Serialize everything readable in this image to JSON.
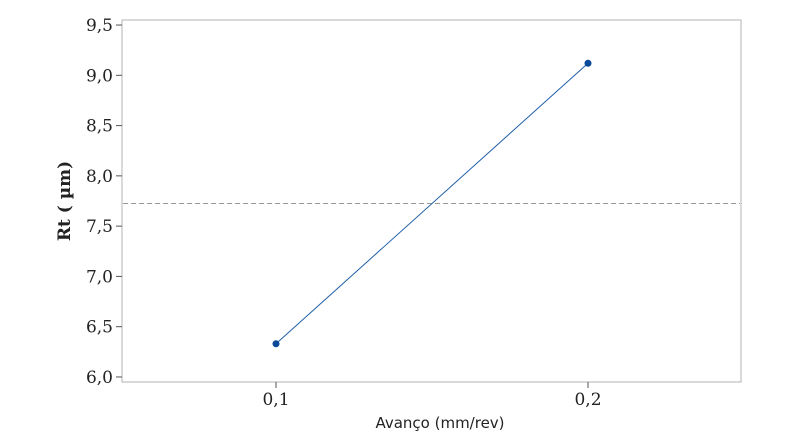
{
  "chart_data": {
    "type": "line",
    "title": "",
    "xlabel": "Avanço (mm/rev)",
    "ylabel": "Rt ( µm)",
    "categories": [
      "0,1",
      "0,2"
    ],
    "series": [
      {
        "name": "Rt",
        "values": [
          6.33,
          9.12
        ],
        "color": "#1f5fa8",
        "marker_color": "#0b4a99"
      }
    ],
    "reference_line": {
      "value": 7.725,
      "color": "#999999",
      "style": "dashed"
    },
    "ylim": [
      5.95,
      9.55
    ],
    "yticks": [
      6.0,
      6.5,
      7.0,
      7.5,
      8.0,
      8.5,
      9.0,
      9.5
    ],
    "ytick_labels": [
      "6,0",
      "6,5",
      "7,0",
      "7,5",
      "8,0",
      "8,5",
      "9,0",
      "9,5"
    ],
    "grid": false
  }
}
